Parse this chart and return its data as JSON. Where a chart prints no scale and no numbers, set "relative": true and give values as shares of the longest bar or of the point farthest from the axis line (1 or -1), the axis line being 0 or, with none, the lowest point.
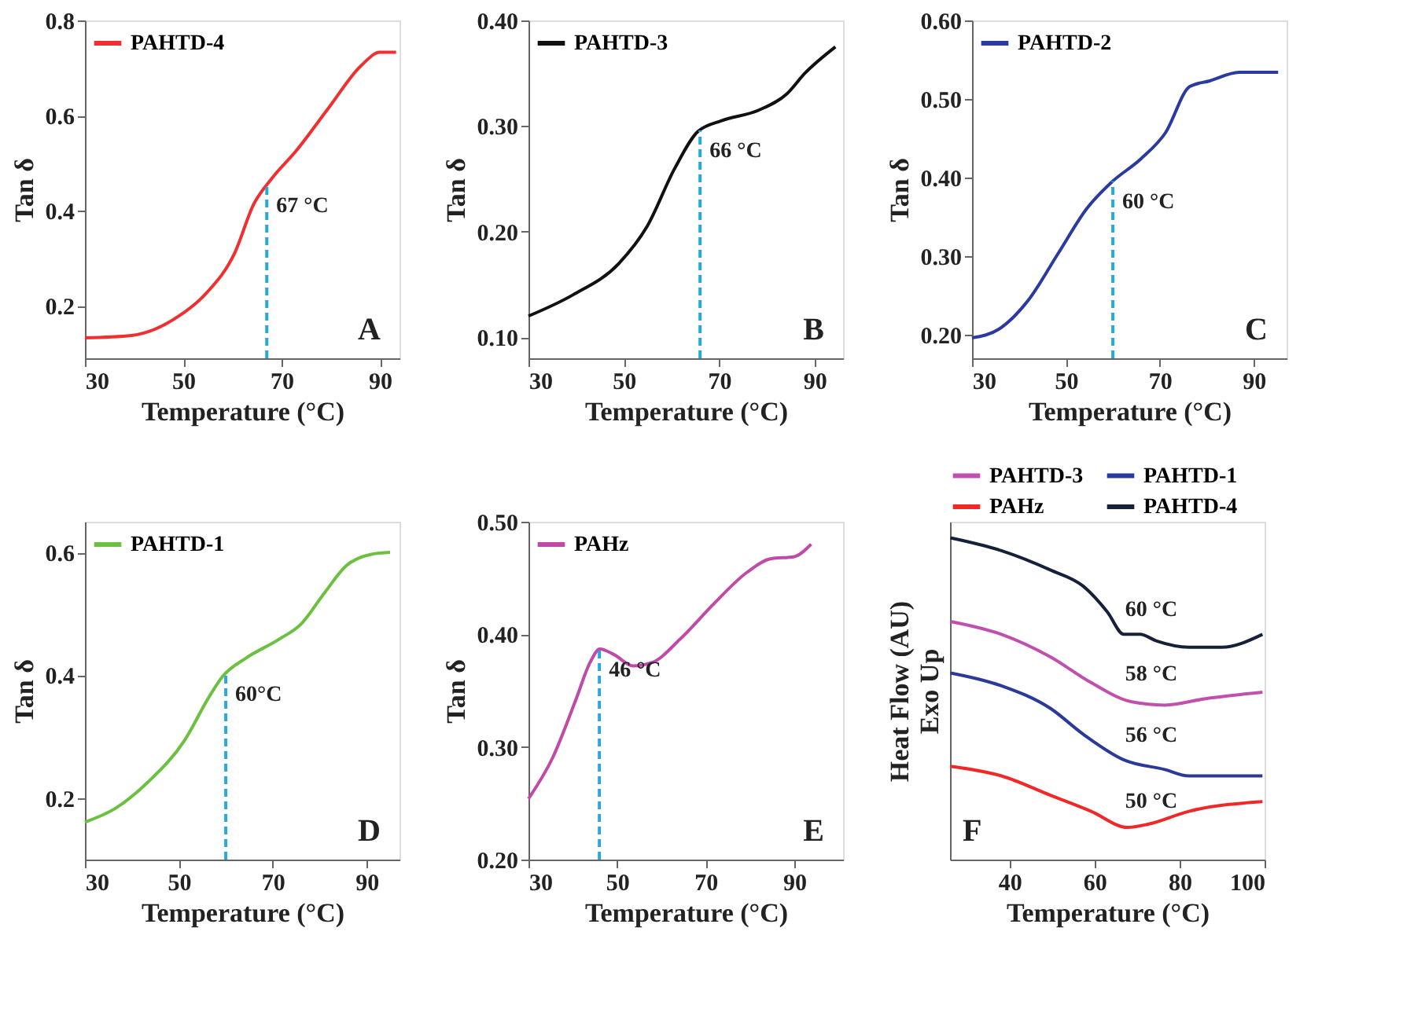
{
  "chart_data": [
    {
      "type": "line",
      "xlabel": "Temperature (°C)",
      "ylabel": "Tan δ",
      "xlim": [
        30,
        94
      ],
      "xticks": [
        30,
        50,
        70,
        90
      ],
      "ylim": [
        0.09,
        0.8
      ],
      "yticks": [
        0.2,
        0.4,
        0.6,
        0.8
      ],
      "grid": false,
      "legend": "top left",
      "series": [
        {
          "name": "PAHTD-4",
          "color": "#f03030",
          "x": [
            30,
            39.5,
            49,
            54.8,
            60.5,
            64.3,
            68.1,
            72.9,
            79.5,
            86.2,
            90,
            93.3
          ],
          "values": [
            0.133,
            0.138,
            0.178,
            0.228,
            0.312,
            0.413,
            0.469,
            0.525,
            0.615,
            0.705,
            0.733,
            0.733
          ]
        }
      ],
      "ref_lines": [
        {
          "axis": "x",
          "value": 67,
          "label": "67 °C",
          "color": "#29a8e0",
          "line_style": "dashed"
        }
      ],
      "annotations": [
        "A"
      ]
    },
    {
      "type": "line",
      "xlabel": "Temperature (°C)",
      "ylabel": "Tan δ",
      "xlim": [
        30,
        96
      ],
      "xticks": [
        30,
        50,
        70,
        90
      ],
      "ylim": [
        0.08,
        0.4
      ],
      "yticks": [
        {
          "value": 0.1,
          "label": "0.10"
        },
        {
          "value": 0.2,
          "label": "0.20"
        },
        {
          "value": 0.3,
          "label": "0.30"
        },
        {
          "value": 0.4,
          "label": "0.40"
        }
      ],
      "grid": false,
      "legend": "top left",
      "series": [
        {
          "name": "PAHTD-3",
          "color": "#111111",
          "x": [
            30,
            39.3,
            49,
            54.9,
            60.7,
            65.6,
            70.5,
            78.3,
            84.1,
            88,
            94.4
          ],
          "values": [
            0.12,
            0.14,
            0.17,
            0.205,
            0.26,
            0.295,
            0.305,
            0.315,
            0.33,
            0.35,
            0.375
          ]
        }
      ],
      "ref_lines": [
        {
          "axis": "x",
          "value": 66,
          "label": "66 °C",
          "color": "#29a8e0",
          "line_style": "dashed"
        }
      ],
      "annotations": [
        "B"
      ]
    },
    {
      "type": "line",
      "xlabel": "Temperature (°C)",
      "ylabel": "Tan δ",
      "xlim": [
        30,
        97
      ],
      "xticks": [
        30,
        50,
        70,
        90
      ],
      "ylim": [
        0.17,
        0.6
      ],
      "yticks": [
        {
          "value": 0.2,
          "label": "0.20"
        },
        {
          "value": 0.3,
          "label": "0.30"
        },
        {
          "value": 0.4,
          "label": "0.40"
        },
        {
          "value": 0.5,
          "label": "0.50"
        },
        {
          "value": 0.6,
          "label": "0.60"
        }
      ],
      "grid": false,
      "legend": "top left",
      "series": [
        {
          "name": "PAHTD-2",
          "color": "#2a3aa0",
          "x": [
            30,
            35.7,
            42,
            48.3,
            54.5,
            59.7,
            66,
            71.2,
            76.4,
            80.6,
            86.9,
            95.2
          ],
          "values": [
            0.196,
            0.207,
            0.244,
            0.303,
            0.361,
            0.394,
            0.424,
            0.457,
            0.516,
            0.523,
            0.534,
            0.534
          ]
        }
      ],
      "ref_lines": [
        {
          "axis": "x",
          "value": 60,
          "label": "60 °C",
          "color": "#29a8e0",
          "line_style": "dashed"
        }
      ],
      "annotations": [
        "C"
      ]
    },
    {
      "type": "line",
      "xlabel": "Temperature (°C)",
      "ylabel": "Tan δ",
      "xlim": [
        30,
        97
      ],
      "xticks": [
        30,
        50,
        70,
        90
      ],
      "ylim": [
        0.1,
        0.65
      ],
      "yticks": [
        0.2,
        0.4,
        0.6
      ],
      "grid": false,
      "legend": "top left",
      "series": [
        {
          "name": "PAHTD-1",
          "color": "#6cc040",
          "x": [
            30,
            36.4,
            43.4,
            51.3,
            56.3,
            59.3,
            64.3,
            71.2,
            76.1,
            81.1,
            85.6,
            91,
            95
          ],
          "values": [
            0.161,
            0.183,
            0.226,
            0.295,
            0.363,
            0.398,
            0.428,
            0.458,
            0.484,
            0.535,
            0.578,
            0.597,
            0.6
          ]
        }
      ],
      "ref_lines": [
        {
          "axis": "x",
          "value": 60,
          "label": "60°C",
          "color": "#29a8e0",
          "line_style": "dashed"
        }
      ],
      "annotations": [
        "D"
      ]
    },
    {
      "type": "line",
      "xlabel": "Temperature (°C)",
      "ylabel": "Tan δ",
      "xlim": [
        30,
        101
      ],
      "xticks": [
        30,
        50,
        70,
        90
      ],
      "ylim": [
        0.2,
        0.5
      ],
      "yticks": [
        {
          "value": 0.2,
          "label": "0.20"
        },
        {
          "value": 0.3,
          "label": "0.30"
        },
        {
          "value": 0.4,
          "label": "0.40"
        },
        {
          "value": 0.5,
          "label": "0.50"
        }
      ],
      "grid": false,
      "legend": "top left",
      "series": [
        {
          "name": "PAHz",
          "color": "#c04aa8",
          "x": [
            30,
            35.4,
            40.7,
            43.9,
            46.1,
            49.3,
            53.6,
            57.9,
            64.3,
            71.8,
            79.3,
            84.6,
            90,
            93.8
          ],
          "values": [
            0.254,
            0.29,
            0.342,
            0.375,
            0.387,
            0.382,
            0.372,
            0.375,
            0.396,
            0.427,
            0.455,
            0.467,
            0.469,
            0.48
          ]
        }
      ],
      "ref_lines": [
        {
          "axis": "x",
          "value": 46,
          "label": "46 °C",
          "color": "#29a8e0",
          "line_style": "dashed"
        }
      ],
      "annotations": [
        "E"
      ]
    },
    {
      "type": "line",
      "relative": true,
      "xlabel": "Temperature (°C)",
      "ylabel": "Heat Flow (AU)\nExo Up",
      "xlim": [
        26,
        100
      ],
      "xticks": [
        40,
        60,
        80,
        100
      ],
      "grid": false,
      "legend": "top",
      "tick_labels": "x",
      "series": [
        {
          "name": "PAHTD-3",
          "color": "#c050b0",
          "x": [
            26.1,
            38.1,
            49.6,
            59.2,
            68.8,
            76.5,
            86.1,
            99.5
          ],
          "values": [
            0.74,
            0.7,
            0.63,
            0.55,
            0.49,
            0.48,
            0.5,
            0.52
          ]
        },
        {
          "name": "PAHTD-1",
          "color": "#2a3a9a",
          "x": [
            26.1,
            38.1,
            49.6,
            57.3,
            66.9,
            76.5,
            82.2,
            99.5
          ],
          "values": [
            0.58,
            0.54,
            0.47,
            0.39,
            0.31,
            0.28,
            0.26,
            0.26
          ]
        },
        {
          "name": "PAHz",
          "color": "#f02828",
          "x": [
            26.1,
            38.1,
            49.6,
            59.2,
            67.8,
            72.6,
            82.2,
            99.5
          ],
          "values": [
            0.29,
            0.26,
            0.2,
            0.15,
            0.1,
            0.11,
            0.15,
            0.18
          ]
        },
        {
          "name": "PAHTD-4",
          "color": "#15203a",
          "x": [
            26.1,
            38.1,
            49.6,
            57.3,
            63,
            66.9,
            70.7,
            74.5,
            82.2,
            89.9,
            99.5
          ],
          "values": [
            1.0,
            0.96,
            0.9,
            0.85,
            0.77,
            0.7,
            0.7,
            0.68,
            0.66,
            0.66,
            0.7
          ]
        }
      ],
      "annotations": [
        "60 °C",
        "58 °C",
        "56 °C",
        "50 °C",
        "F"
      ]
    }
  ]
}
